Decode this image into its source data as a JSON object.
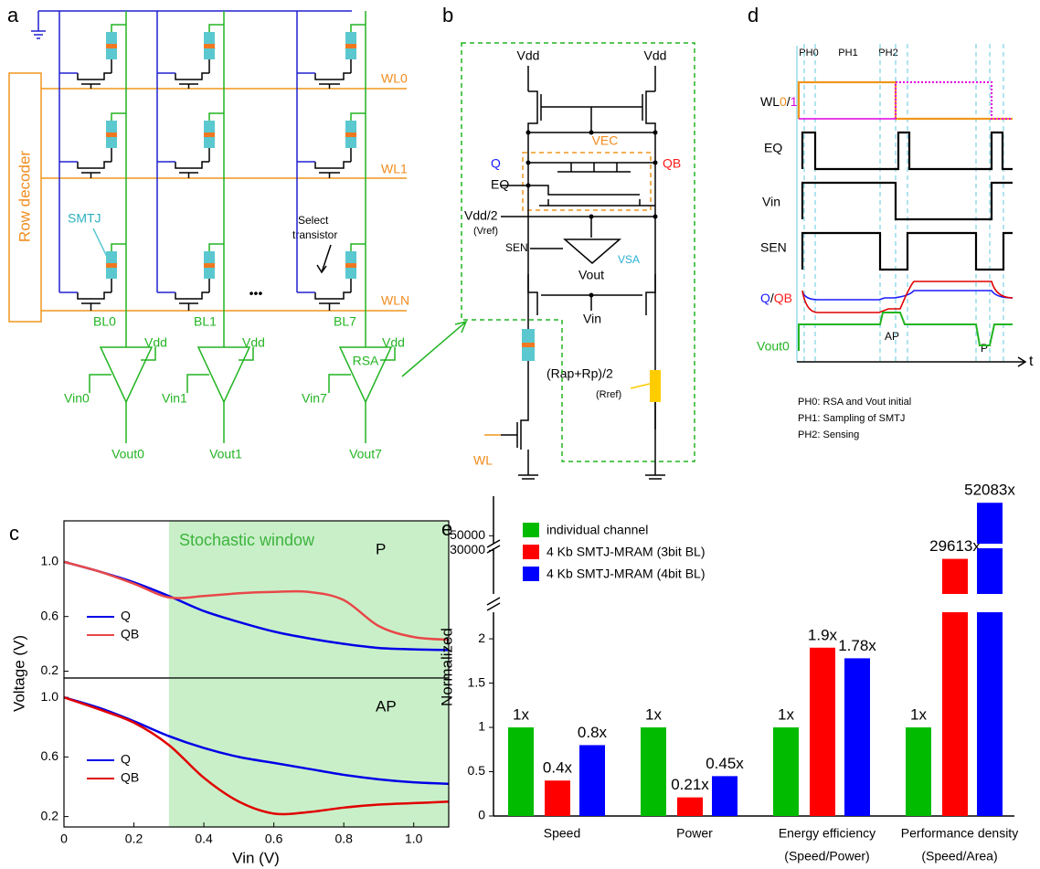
{
  "panel_a": {
    "letter": "a",
    "row_decoder": "Row decoder",
    "smtj": "SMTJ",
    "select_transistor": [
      "Select",
      "transistor"
    ],
    "word_lines": [
      "WL0",
      "WL1",
      "WLN"
    ],
    "bit_lines": [
      "BL0",
      "BL1",
      "BL7"
    ],
    "vdd": [
      "Vdd",
      "Vdd",
      "Vdd"
    ],
    "vin": [
      "Vin0",
      "Vin1",
      "Vin7"
    ],
    "vout": [
      "Vout0",
      "Vout1",
      "Vout7"
    ],
    "rsa": "RSA",
    "ellipsis": "•••"
  },
  "panel_b": {
    "letter": "b",
    "vdd": [
      "Vdd",
      "Vdd"
    ],
    "vec": "VEC",
    "q": "Q",
    "qb": "QB",
    "eq": "EQ",
    "vdd_half": "Vdd/2",
    "vref": "(Vref)",
    "sen": "SEN",
    "vsa": "VSA",
    "vout": "Vout",
    "vin": "Vin",
    "rref_value": "(Rap+Rp)/2",
    "rref": "(Rref)",
    "wl": "WL"
  },
  "panel_d": {
    "letter": "d",
    "phases": [
      "PH0",
      "PH1",
      "PH2"
    ],
    "signals": {
      "wl": [
        "WL",
        "0",
        "/",
        "1"
      ],
      "eq": "EQ",
      "vin": "Vin",
      "sen": "SEN",
      "q_qb": [
        "Q",
        "/",
        "QB"
      ],
      "vout": "Vout0"
    },
    "markers": [
      "AP",
      "P"
    ],
    "time": "t",
    "notes": [
      "PH0: RSA and Vout initial",
      "PH1: Sampling of SMTJ",
      "PH2: Sensing"
    ]
  },
  "chart_data": [
    {
      "type": "line",
      "panel_label": "c",
      "annotation": "Stochastic window",
      "y_label": "Voltage (V)",
      "state": "P",
      "shade": [
        0.3,
        1.1
      ],
      "shade_color": "#c9efc9",
      "x": [
        0,
        0.1,
        0.2,
        0.3,
        0.4,
        0.5,
        0.6,
        0.7,
        0.8,
        0.9,
        1.0,
        1.1
      ],
      "series": [
        {
          "name": "Q",
          "color": "#0000e6",
          "values": [
            1.0,
            0.93,
            0.85,
            0.75,
            0.64,
            0.56,
            0.49,
            0.44,
            0.4,
            0.37,
            0.36,
            0.355
          ]
        },
        {
          "name": "QB",
          "color": "#e84848",
          "values": [
            1.0,
            0.93,
            0.84,
            0.74,
            0.75,
            0.77,
            0.78,
            0.78,
            0.72,
            0.53,
            0.45,
            0.43
          ]
        }
      ],
      "xlim": [
        0,
        1.1
      ],
      "ylim": [
        0.15,
        1.3
      ],
      "yticks": [
        0.2,
        0.6,
        {
          "value": 1,
          "label": "1.0"
        }
      ]
    },
    {
      "type": "line",
      "x_label": "Vin (V)",
      "state": "AP",
      "shade": [
        0.3,
        1.1
      ],
      "shade_color": "#c9efc9",
      "x": [
        0,
        0.1,
        0.2,
        0.3,
        0.4,
        0.5,
        0.6,
        0.7,
        0.8,
        0.9,
        1.0,
        1.1
      ],
      "series": [
        {
          "name": "Q",
          "color": "#0000e6",
          "values": [
            1.0,
            0.93,
            0.84,
            0.74,
            0.66,
            0.6,
            0.56,
            0.52,
            0.48,
            0.45,
            0.43,
            0.42
          ]
        },
        {
          "name": "QB",
          "color": "#e00000",
          "values": [
            1.0,
            0.92,
            0.83,
            0.68,
            0.46,
            0.3,
            0.22,
            0.23,
            0.26,
            0.28,
            0.29,
            0.3
          ]
        }
      ],
      "xlim": [
        0,
        1.1
      ],
      "ylim": [
        0.13,
        1.13
      ],
      "yticks": [
        0.2,
        0.6,
        {
          "value": 1,
          "label": "1.0"
        }
      ],
      "xticks": [
        0,
        0.2,
        0.4,
        0.6,
        0.8,
        {
          "value": 1,
          "label": "1.0"
        }
      ]
    },
    {
      "type": "bar",
      "panel_label": "e",
      "y_label": "Normalized",
      "categories": [
        "Speed",
        "Power",
        "Energy efficiency",
        "Performance density"
      ],
      "category_notes": [
        null,
        null,
        "(Speed/Power)",
        "(Speed/Area)"
      ],
      "series": [
        {
          "name": "individual channel",
          "color": "#00bb00",
          "values": [
            1,
            1,
            1,
            1
          ],
          "value_labels": [
            "1x",
            "1x",
            "1x",
            "1x"
          ]
        },
        {
          "name": "4 Kb SMTJ-MRAM  (3bit BL)",
          "color": "#ff0000",
          "values": [
            0.4,
            0.21,
            1.9,
            29613
          ],
          "value_labels": [
            "0.4x",
            "0.21x",
            "1.9x",
            "29613x"
          ]
        },
        {
          "name": "4 Kb SMTJ-MRAM  (4bit BL)",
          "color": "#0000ff",
          "values": [
            0.8,
            0.45,
            1.78,
            52083
          ],
          "value_labels": [
            "0.8x",
            "0.45x",
            "1.78x",
            "52083x"
          ]
        }
      ],
      "y_segments": [
        [
          0,
          2.3
        ],
        [
          28000,
          30100
        ],
        [
          49500,
          52500
        ]
      ],
      "yticks": [
        0,
        0.5,
        1,
        1.5,
        2,
        30000,
        50000
      ]
    }
  ]
}
